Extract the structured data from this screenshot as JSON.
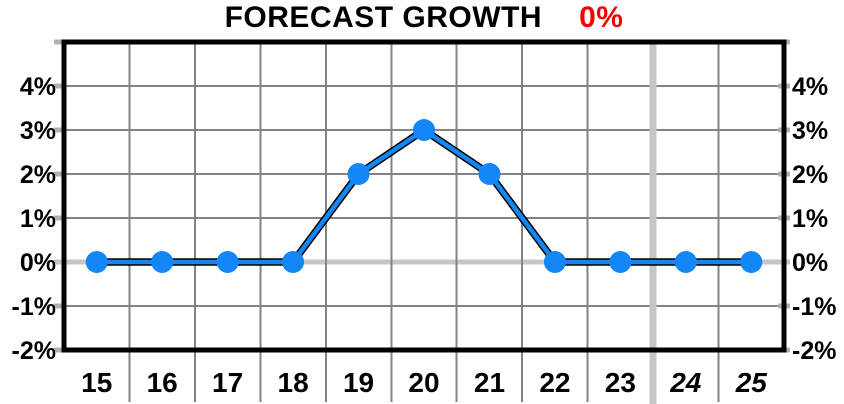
{
  "title": {
    "text": "FORECAST GROWTH",
    "value": "0%"
  },
  "colors": {
    "title_text": "#000000",
    "title_value": "#f50000",
    "line": "#1287f5",
    "line_outline": "#000000",
    "marker": "#1287f5",
    "grid": "#838383",
    "zero_line": "#c6c6c6",
    "divider_band": "#c6c6c6",
    "tick_nub": "#b2b2b2",
    "border": "#000000",
    "background": "#ffffff"
  },
  "chart_data": {
    "type": "line",
    "title": "FORECAST GROWTH 0%",
    "categories": [
      "15",
      "16",
      "17",
      "18",
      "19",
      "20",
      "21",
      "22",
      "23",
      "24",
      "25"
    ],
    "values": [
      0,
      0,
      0,
      0,
      2,
      3,
      2,
      0,
      0,
      0,
      0
    ],
    "xlabel": "",
    "ylabel": "",
    "ylim": [
      -2,
      5
    ],
    "yticks": [
      -2,
      -1,
      0,
      1,
      2,
      3,
      4
    ],
    "ytick_labels": [
      "-2%",
      "-1%",
      "0%",
      "1%",
      "2%",
      "3%",
      "4%"
    ],
    "y_axis_sides": "both",
    "grid": true,
    "zero_line_emphasized": true,
    "divider_after_category": "23",
    "italic_categories": [
      "24",
      "25"
    ],
    "legend": "none",
    "marker": "circle"
  }
}
